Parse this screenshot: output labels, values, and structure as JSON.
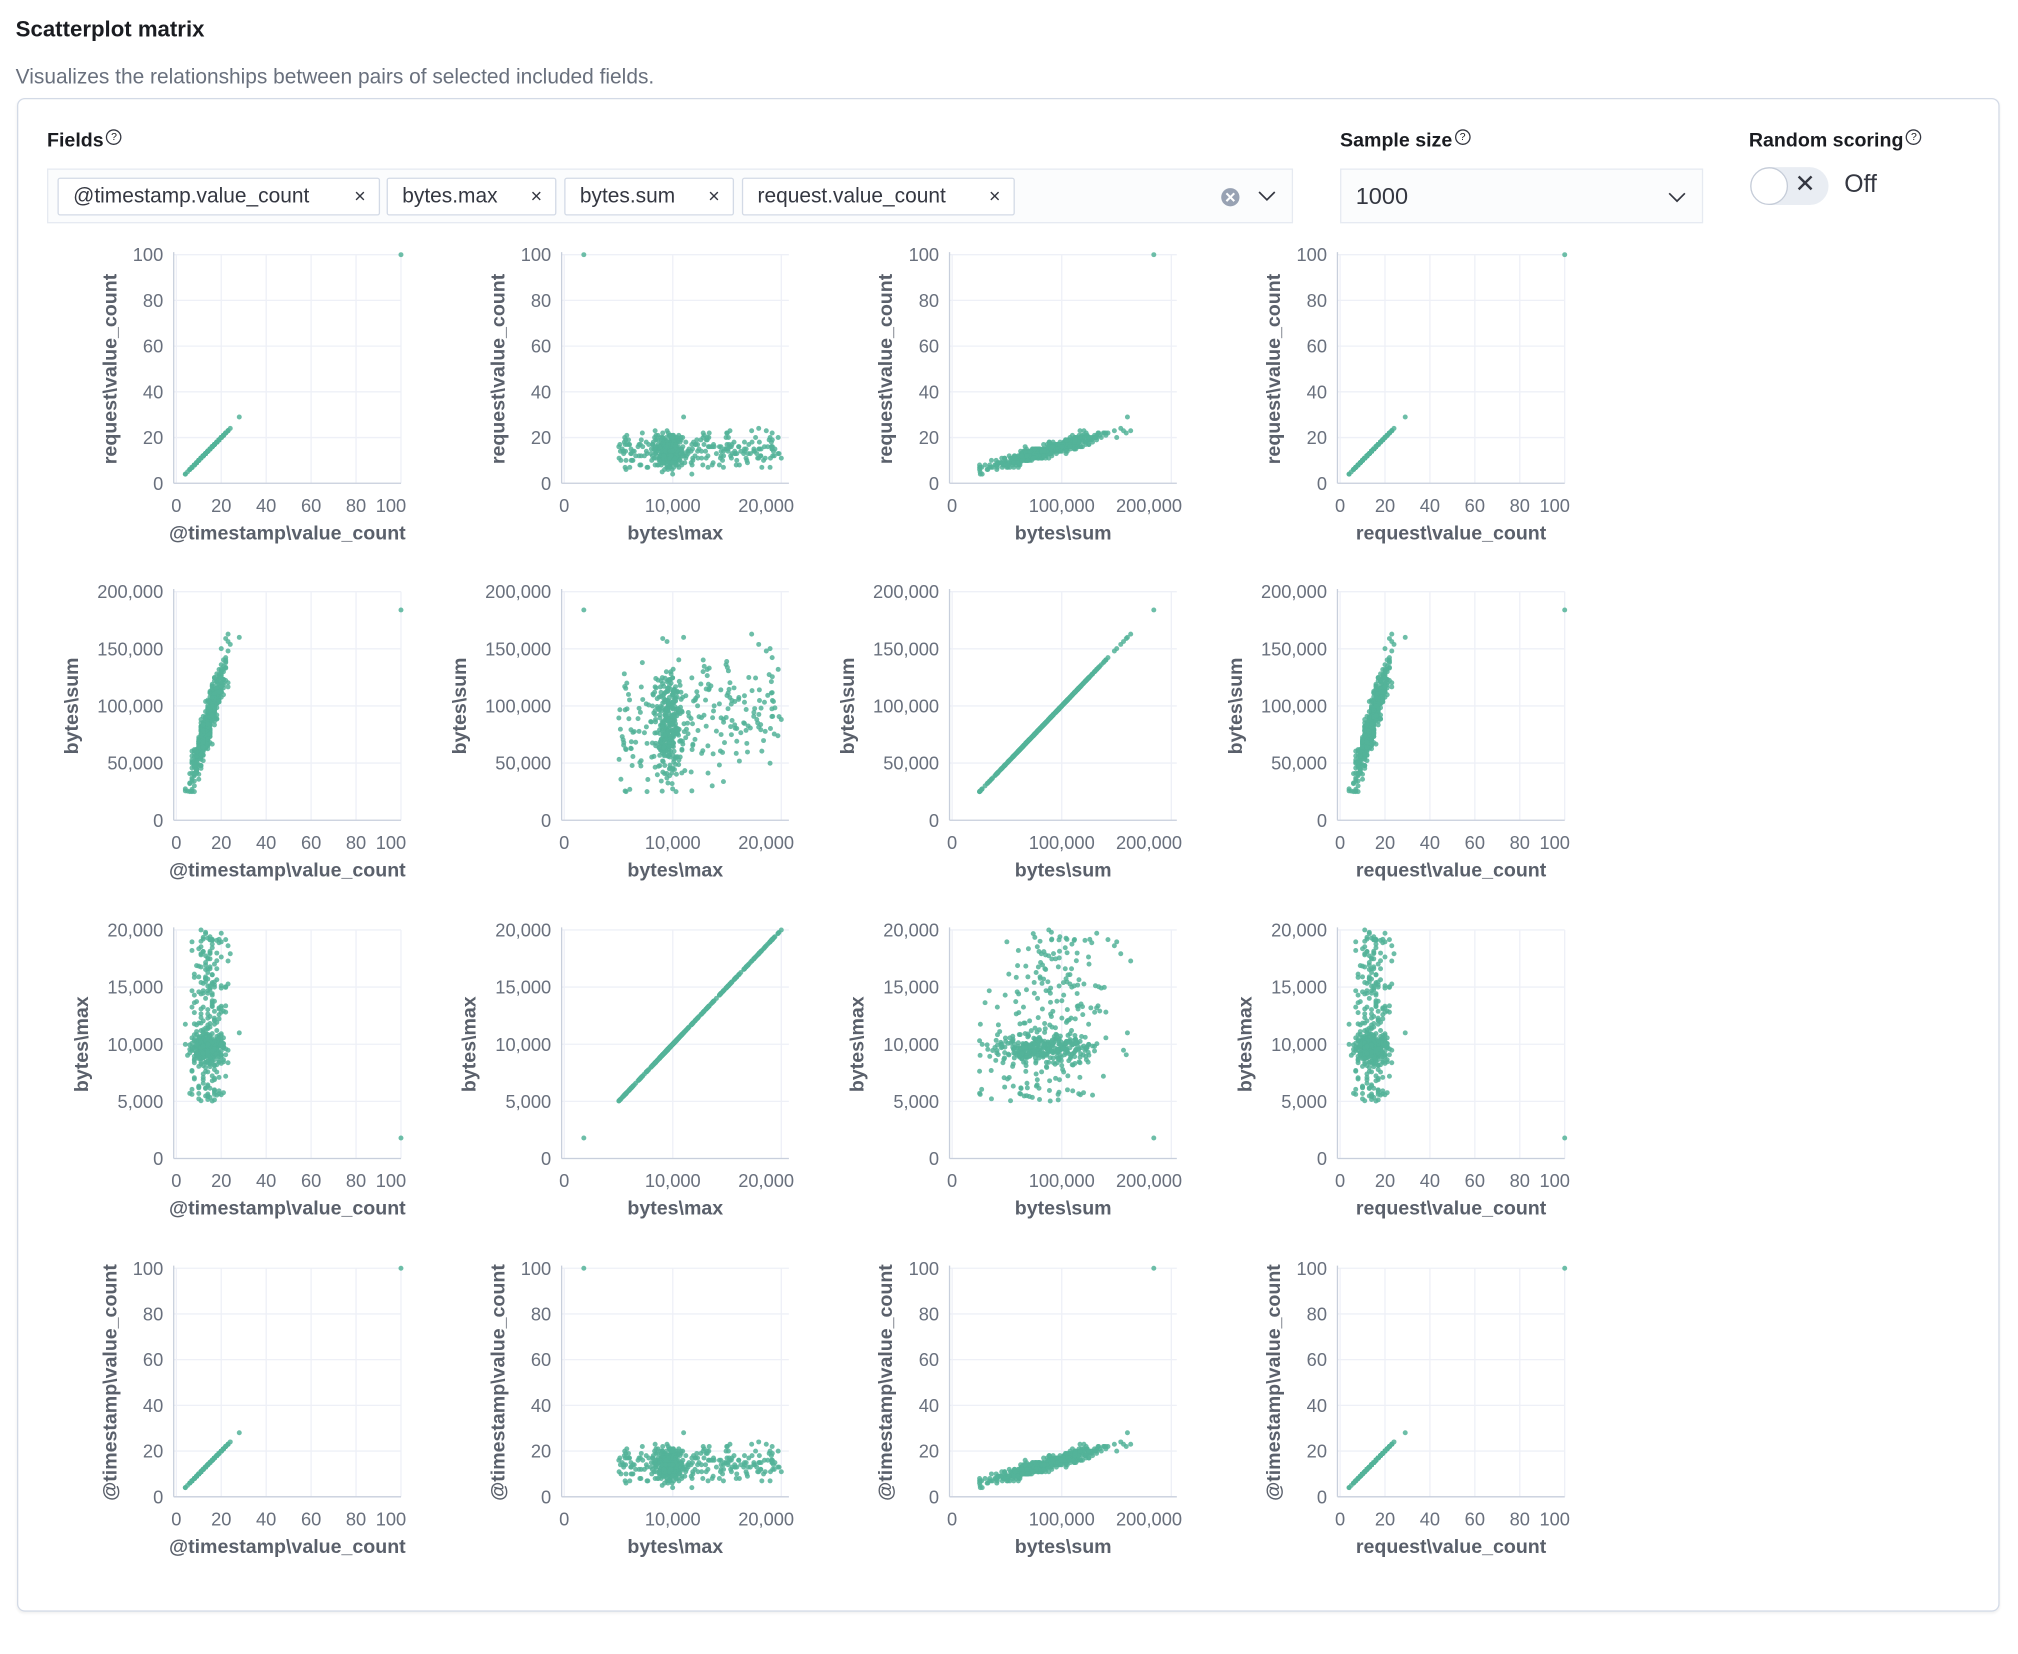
{
  "header": {
    "title": "Scatterplot matrix",
    "subtitle": "Visualizes the relationships between pairs of selected included fields."
  },
  "controls": {
    "fields_label": "Fields",
    "fields": [
      {
        "label": "@timestamp.value_count"
      },
      {
        "label": "bytes.max"
      },
      {
        "label": "bytes.sum"
      },
      {
        "label": "request.value_count"
      }
    ],
    "remove_icon": "×",
    "sample_size_label": "Sample size",
    "sample_size_value": "1000",
    "random_scoring_label": "Random scoring",
    "random_scoring_state": "Off",
    "toggle_icon": "✕",
    "help_icon": "?"
  },
  "colors": {
    "point": "#54B399",
    "grid": "#eef0f7",
    "axis": "#c8cfdc",
    "tick_text": "#69707d"
  },
  "chart_data": {
    "type": "scatter",
    "grid": true,
    "axes": {
      "timestamp": {
        "label": "@timestamp\\value_count",
        "range": [
          0,
          100
        ],
        "ticks": [
          0,
          20,
          40,
          60,
          80,
          100
        ],
        "tick_labels": [
          "0",
          "20",
          "40",
          "60",
          "80",
          "100"
        ]
      },
      "max": {
        "label": "bytes\\max",
        "range": [
          0,
          20700
        ],
        "ticks": [
          0,
          10000,
          20000
        ],
        "tick_labels": [
          "0",
          "10,000",
          "20,000"
        ],
        "y_ticks": [
          0,
          5000,
          10000,
          15000,
          20000
        ],
        "y_tick_labels": [
          "0",
          "5,000",
          "10,000",
          "15,000",
          "20,000"
        ],
        "y_range": [
          0,
          20000
        ]
      },
      "sum": {
        "label": "bytes\\sum",
        "range": [
          0,
          205000
        ],
        "ticks": [
          0,
          100000,
          200000
        ],
        "tick_labels": [
          "0",
          "100,000",
          "200,000"
        ],
        "y_ticks": [
          0,
          50000,
          100000,
          150000,
          200000
        ],
        "y_tick_labels": [
          "0",
          "50,000",
          "100,000",
          "150,000",
          "200,000"
        ],
        "y_range": [
          0,
          200000
        ]
      },
      "request": {
        "label": "request\\value_count",
        "range": [
          0,
          100
        ],
        "ticks": [
          0,
          20,
          40,
          60,
          80,
          100
        ],
        "tick_labels": [
          "0",
          "20",
          "40",
          "60",
          "80",
          "100"
        ]
      }
    },
    "rows": [
      "request",
      "sum",
      "max",
      "timestamp"
    ],
    "columns": [
      "timestamp",
      "max",
      "sum",
      "request"
    ],
    "sample_size": 1000,
    "outliers": [
      {
        "timestamp": 100,
        "request": 100,
        "max": 1800,
        "sum": 184000
      },
      {
        "timestamp": 28,
        "request": 29,
        "max": 11000,
        "sum": 160000
      }
    ]
  }
}
